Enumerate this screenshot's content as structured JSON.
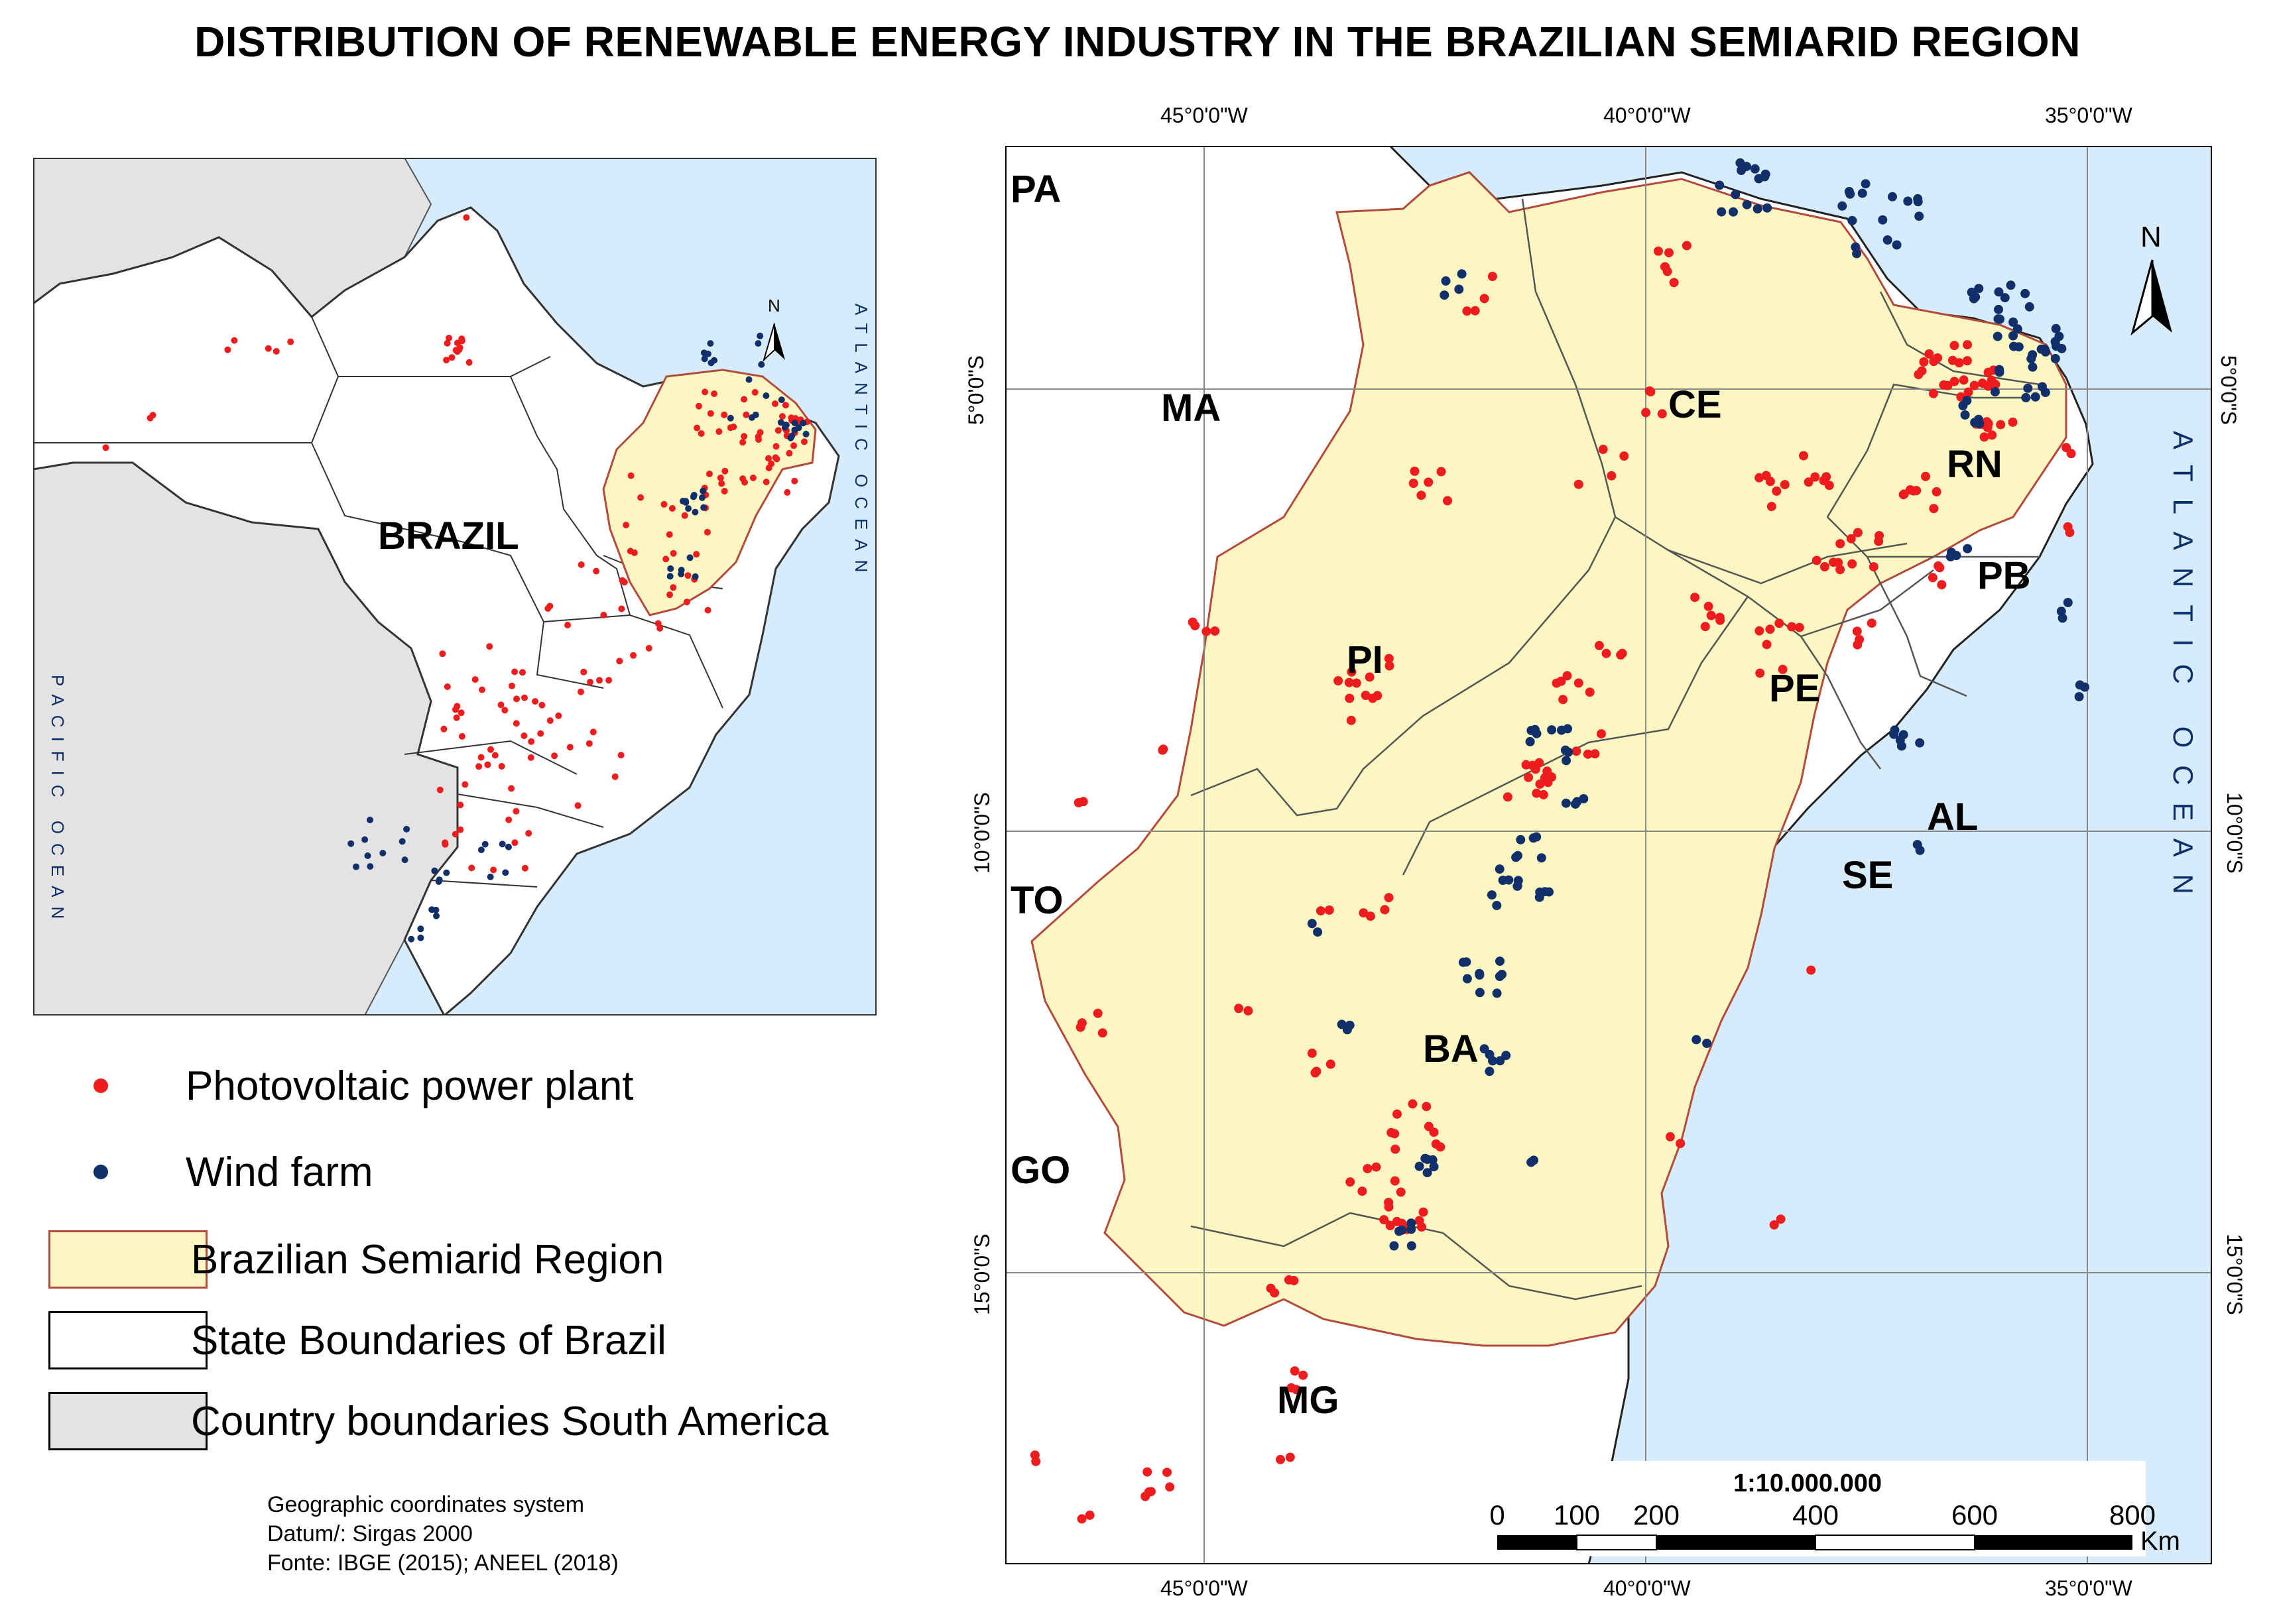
{
  "title": "DISTRIBUTION OF RENEWABLE ENERGY INDUSTRY IN THE BRAZILIAN SEMIARID REGION",
  "colors": {
    "ocean": "#d6ebfb",
    "semiarid": "#fbf6c2",
    "semiarid_border": "#b34a3a",
    "country": "#e3e3e3",
    "state": "#ffffff",
    "pv": "#ee1c1c",
    "wind": "#102f6b"
  },
  "inset": {
    "country_label": "BRAZIL",
    "ocean_atlantic": "ATLANTIC OCEAN",
    "ocean_pacific": "PACIFIC OCEAN",
    "north": "N"
  },
  "legend": {
    "pv": "Photovoltaic power plant",
    "wind": "Wind farm",
    "semiarid": "Brazilian Semiarid Region",
    "states": "State Boundaries of Brazil",
    "countries": "Country boundaries South America"
  },
  "source": {
    "line1": "Geographic coordinates system",
    "line2": "Datum/: Sirgas 2000",
    "line3": "Fonte: IBGE (2015); ANEEL (2018)"
  },
  "main_map": {
    "north": "N",
    "ocean": "ATLANTIC OCEAN",
    "lon_labels": [
      "45°0'0\"W",
      "40°0'0\"W",
      "35°0'0\"W"
    ],
    "lat_labels": [
      "5°0'0\"S",
      "10°0'0\"S",
      "15°0'0\"S"
    ],
    "states": [
      "PA",
      "MA",
      "CE",
      "RN",
      "PB",
      "PI",
      "PE",
      "AL",
      "SE",
      "TO",
      "BA",
      "GO",
      "MG"
    ],
    "scale_text": "1:10.000.000",
    "scale_ticks": [
      "0",
      "100",
      "200",
      "400",
      "600",
      "800"
    ],
    "scale_unit": "Km"
  }
}
